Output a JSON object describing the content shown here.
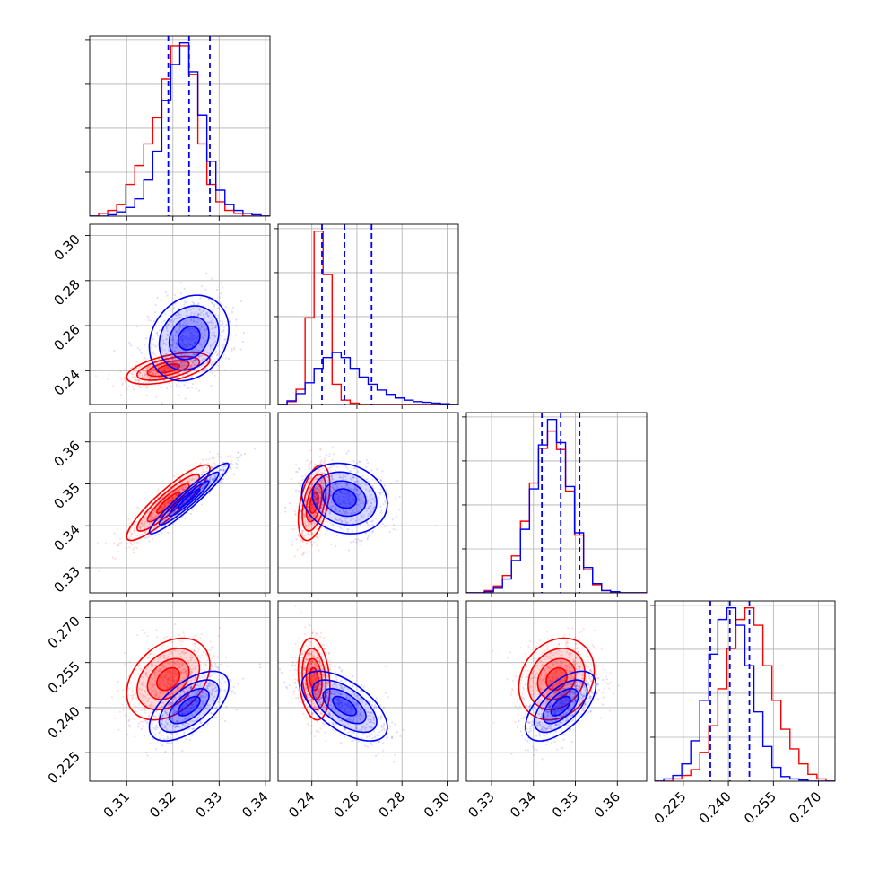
{
  "chart_data": {
    "type": "corner",
    "title": "",
    "grid": true,
    "legend": "none",
    "dimensions": 4,
    "parameters": [
      {
        "index": 0,
        "label": "",
        "range": [
          0.302,
          0.341
        ],
        "ticks": [
          0.31,
          0.32,
          0.33,
          0.34
        ],
        "tick_labels": [
          "0.31",
          "0.32",
          "0.33",
          "0.34"
        ]
      },
      {
        "index": 1,
        "label": "",
        "range": [
          0.225,
          0.305
        ],
        "ticks": [
          0.24,
          0.26,
          0.28,
          0.3
        ],
        "tick_labels": [
          "0.24",
          "0.26",
          "0.28",
          "0.30"
        ]
      },
      {
        "index": 2,
        "label": "",
        "range": [
          0.324,
          0.367
        ],
        "ticks": [
          0.33,
          0.34,
          0.35,
          0.36
        ],
        "tick_labels": [
          "0.33",
          "0.34",
          "0.35",
          "0.36"
        ]
      },
      {
        "index": 3,
        "label": "",
        "range": [
          0.2155,
          0.2755
        ],
        "ticks": [
          0.225,
          0.24,
          0.255,
          0.27
        ],
        "tick_labels": [
          "0.225",
          "0.240",
          "0.255",
          "0.270"
        ]
      }
    ],
    "series": [
      {
        "color": "#ff0000",
        "means": [
          0.319,
          0.241,
          0.3455,
          0.2495
        ],
        "sigmas": [
          0.0045,
          0.0035,
          0.0045,
          0.0068
        ],
        "correlations": [
          [
            0,
            1,
            0.55
          ],
          [
            0,
            2,
            0.9
          ],
          [
            0,
            3,
            0.35
          ],
          [
            1,
            2,
            0.45
          ],
          [
            1,
            3,
            -0.2
          ],
          [
            2,
            3,
            0.2
          ]
        ],
        "histograms": [
          {
            "edges_range": [
              0.302,
              0.341
            ],
            "bins": 20,
            "counts": [
              0,
              2,
              4,
              8,
              22,
              35,
              50,
              68,
              95,
              118,
              118,
              98,
              50,
              22,
              10,
              4,
              2,
              0,
              0,
              0
            ]
          },
          {
            "edges_range": [
              0.225,
              0.305
            ],
            "bins": 20,
            "counts": [
              0,
              4,
              21,
              120,
              240,
              180,
              28,
              6,
              2,
              0,
              0,
              0,
              0,
              0,
              0,
              0,
              0,
              0,
              0,
              0
            ]
          },
          {
            "edges_range": [
              0.324,
              0.367
            ],
            "bins": 20,
            "counts": [
              0,
              0,
              2,
              6,
              15,
              32,
              62,
              95,
              125,
              140,
              124,
              88,
              50,
              20,
              7,
              2,
              0,
              0,
              0,
              0
            ]
          },
          {
            "edges_range": [
              0.2155,
              0.2755
            ],
            "bins": 20,
            "counts": [
              0,
              0,
              2,
              5,
              10,
              25,
              48,
              80,
              115,
              140,
              150,
              135,
              100,
              70,
              45,
              28,
              15,
              6,
              2,
              0
            ]
          }
        ]
      },
      {
        "color": "#0000ff",
        "means": [
          0.3235,
          0.2545,
          0.3465,
          0.2405
        ],
        "sigmas": [
          0.0043,
          0.0095,
          0.0042,
          0.0058
        ],
        "correlations": [
          [
            0,
            1,
            0.2
          ],
          [
            0,
            2,
            0.95
          ],
          [
            0,
            3,
            0.6
          ],
          [
            1,
            2,
            -0.15
          ],
          [
            1,
            3,
            -0.6
          ],
          [
            2,
            3,
            0.6
          ]
        ],
        "quantile_lines": [
          [
            0.319,
            0.3235,
            0.328
          ],
          [
            0.2445,
            0.2545,
            0.2665
          ],
          [
            0.342,
            0.3465,
            0.351
          ],
          [
            0.234,
            0.2405,
            0.247
          ]
        ],
        "histograms": [
          {
            "edges_range": [
              0.302,
              0.341
            ],
            "bins": 20,
            "counts": [
              0,
              0,
              1,
              3,
              6,
              12,
              25,
              45,
              80,
              105,
              120,
              100,
              70,
              38,
              18,
              8,
              4,
              2,
              1,
              0
            ]
          },
          {
            "edges_range": [
              0.225,
              0.305
            ],
            "bins": 20,
            "counts": [
              0,
              5,
              15,
              30,
              50,
              65,
              72,
              65,
              50,
              38,
              28,
              20,
              14,
              9,
              6,
              4,
              3,
              2,
              1,
              0
            ]
          },
          {
            "edges_range": [
              0.324,
              0.367
            ],
            "bins": 20,
            "counts": [
              0,
              0,
              1,
              4,
              12,
              28,
              55,
              90,
              128,
              150,
              130,
              92,
              52,
              22,
              8,
              2,
              1,
              0,
              0,
              0
            ]
          },
          {
            "edges_range": [
              0.2155,
              0.2755
            ],
            "bins": 20,
            "counts": [
              0,
              2,
              5,
              15,
              35,
              70,
              110,
              140,
              150,
              135,
              100,
              60,
              30,
              12,
              4,
              2,
              1,
              0,
              0,
              0
            ]
          }
        ]
      }
    ]
  }
}
